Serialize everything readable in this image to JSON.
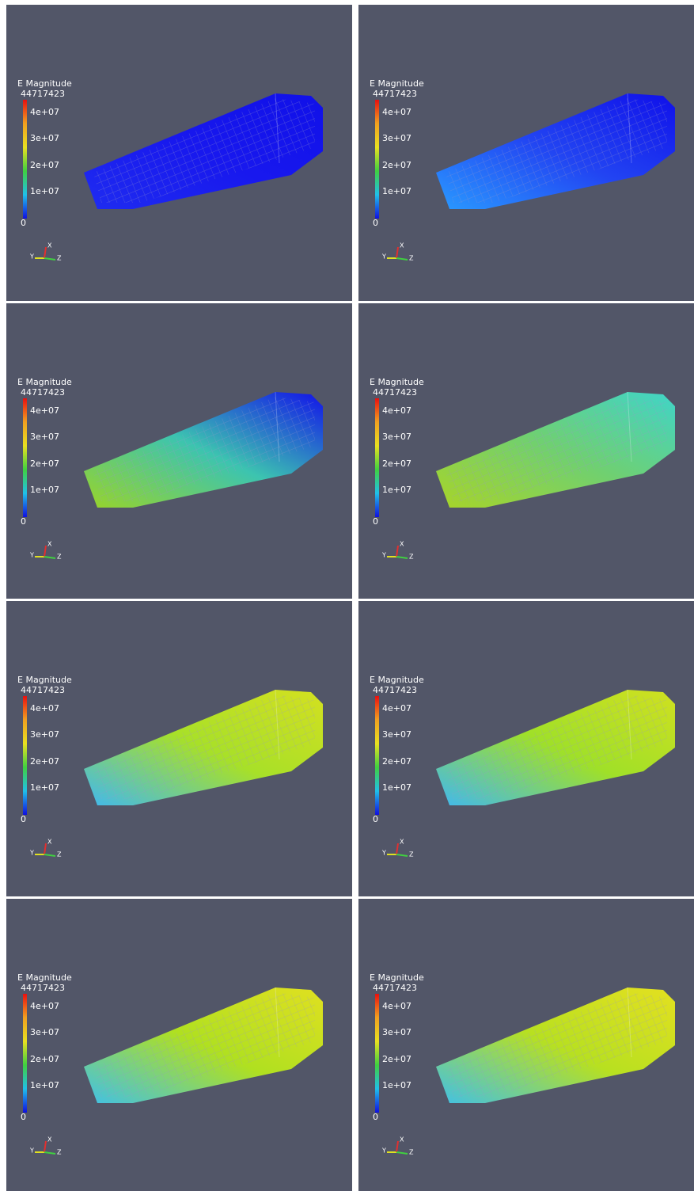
{
  "panels": [
    {
      "legend": {
        "title": "E Magnitude",
        "max": "44717423",
        "ticks": [
          "4e+07",
          "3e+07",
          "2e+07",
          "1e+07",
          "0"
        ]
      },
      "axes": [
        "Y",
        "X",
        "Z"
      ]
    },
    {
      "legend": {
        "title": "E Magnitude",
        "max": "44717423",
        "ticks": [
          "4e+07",
          "3e+07",
          "2e+07",
          "1e+07",
          "0"
        ]
      },
      "axes": [
        "Y",
        "X",
        "Z"
      ]
    },
    {
      "legend": {
        "title": "E Magnitude",
        "max": "44717423",
        "ticks": [
          "4e+07",
          "3e+07",
          "2e+07",
          "1e+07",
          "0"
        ]
      },
      "axes": [
        "Y",
        "X",
        "Z"
      ]
    },
    {
      "legend": {
        "title": "E Magnitude",
        "max": "44717423",
        "ticks": [
          "4e+07",
          "3e+07",
          "2e+07",
          "1e+07",
          "0"
        ]
      },
      "axes": [
        "Y",
        "X",
        "Z"
      ]
    },
    {
      "legend": {
        "title": "E Magnitude",
        "max": "44717423",
        "ticks": [
          "4e+07",
          "3e+07",
          "2e+07",
          "1e+07",
          "0"
        ]
      },
      "axes": [
        "Y",
        "X",
        "Z"
      ]
    },
    {
      "legend": {
        "title": "E Magnitude",
        "max": "44717423",
        "ticks": [
          "4e+07",
          "3e+07",
          "2e+07",
          "1e+07",
          "0"
        ]
      },
      "axes": [
        "Y",
        "X",
        "Z"
      ]
    },
    {
      "legend": {
        "title": "E Magnitude",
        "max": "44717423",
        "ticks": [
          "4e+07",
          "3e+07",
          "2e+07",
          "1e+07",
          "0"
        ]
      },
      "axes": [
        "Y",
        "X",
        "Z"
      ]
    },
    {
      "legend": {
        "title": "E Magnitude",
        "max": "44717423",
        "ticks": [
          "4e+07",
          "3e+07",
          "2e+07",
          "1e+07",
          "0"
        ]
      },
      "axes": [
        "Y",
        "X",
        "Z"
      ]
    }
  ]
}
